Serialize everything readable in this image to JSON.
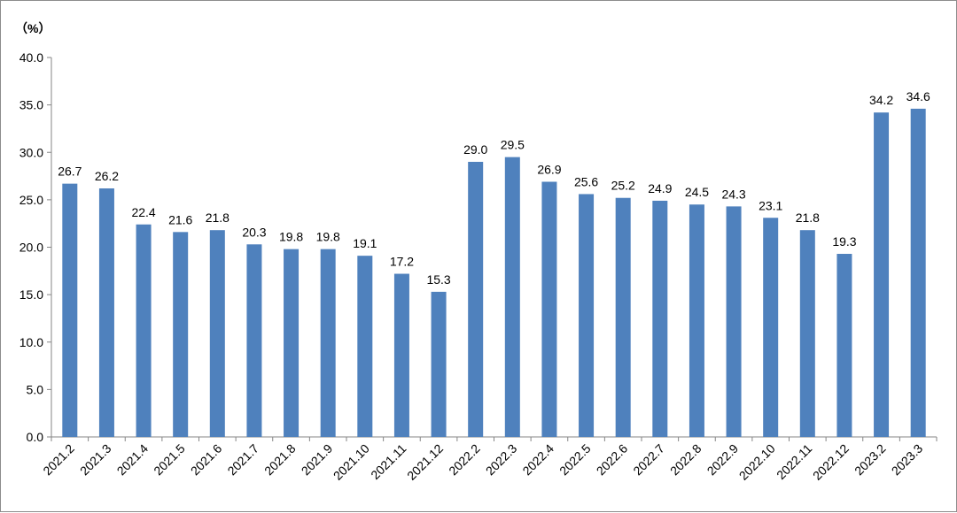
{
  "chart_data": {
    "type": "bar",
    "unit_label": "（%）",
    "categories": [
      "2021.2",
      "2021.3",
      "2021.4",
      "2021.5",
      "2021.6",
      "2021.7",
      "2021.8",
      "2021.9",
      "2021.10",
      "2021.11",
      "2021.12",
      "2022.2",
      "2022.3",
      "2022.4",
      "2022.5",
      "2022.6",
      "2022.7",
      "2022.8",
      "2022.9",
      "2022.10",
      "2022.11",
      "2022.12",
      "2023.2",
      "2023.3"
    ],
    "values": [
      26.7,
      26.2,
      22.4,
      21.6,
      21.8,
      20.3,
      19.8,
      19.8,
      19.1,
      17.2,
      15.3,
      29.0,
      29.5,
      26.9,
      25.6,
      25.2,
      24.9,
      24.5,
      24.3,
      23.1,
      21.8,
      19.3,
      34.2,
      34.6
    ],
    "value_labels": [
      "26.7",
      "26.2",
      "22.4",
      "21.6",
      "21.8",
      "20.3",
      "19.8",
      "19.8",
      "19.1",
      "17.2",
      "15.3",
      "29.0",
      "29.5",
      "26.9",
      "25.6",
      "25.2",
      "24.9",
      "24.5",
      "24.3",
      "23.1",
      "21.8",
      "19.3",
      "34.2",
      "34.6"
    ],
    "y_ticks": [
      "0.0",
      "5.0",
      "10.0",
      "15.0",
      "20.0",
      "25.0",
      "30.0",
      "35.0",
      "40.0"
    ],
    "ylim": [
      0,
      40
    ],
    "grid": false,
    "legend": false,
    "colors": {
      "bar": "#4f81bd",
      "axis": "#868686"
    }
  }
}
